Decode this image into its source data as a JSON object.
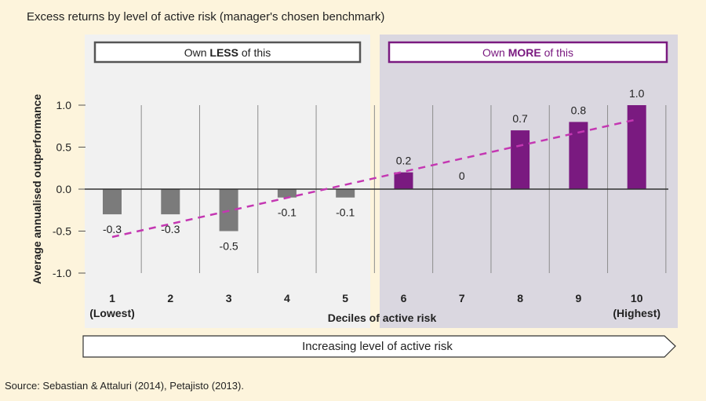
{
  "title": "Excess returns by level of active risk (manager's chosen benchmark)",
  "source": "Source: Sebastian & Attaluri (2014), Petajisto (2013).",
  "boxes": {
    "less": {
      "pre": "Own ",
      "bold": "LESS",
      "post": " of this"
    },
    "more": {
      "pre": "Own ",
      "bold": "MORE",
      "post": " of this"
    }
  },
  "arrow_label": "Increasing level of active risk",
  "colors": {
    "negative_bar": "#7b7b7b",
    "positive_bar": "#7a1a80",
    "trend": "#c437b2",
    "less_panel": "#f1f1f1",
    "more_panel": "#dad7e0",
    "more_box_border": "#7a1a80",
    "background": "#fdf4dc"
  },
  "chart_data": {
    "type": "bar",
    "categories": [
      "1",
      "2",
      "3",
      "4",
      "5",
      "6",
      "7",
      "8",
      "9",
      "10"
    ],
    "category_sublabels": {
      "1": "(Lowest)",
      "10": "(Highest)"
    },
    "values": [
      -0.3,
      -0.3,
      -0.5,
      -0.1,
      -0.1,
      0.2,
      0,
      0.7,
      0.8,
      1.0
    ],
    "data_labels": [
      "-0.3",
      "-0.3",
      "-0.5",
      "-0.1",
      "-0.1",
      "0.2",
      "0",
      "0.7",
      "0.8",
      "1.0"
    ],
    "xlabel": "Deciles of active risk",
    "ylabel": "Average annualised outperformance",
    "ylim": [
      -1.0,
      1.0
    ],
    "yticks": [
      1.0,
      0.5,
      0.0,
      -0.5,
      -1.0
    ],
    "ytick_labels": [
      "1.0",
      "0.5",
      "0.0",
      "-0.5",
      "-1.0"
    ],
    "trend_line": {
      "style": "dashed",
      "start": [
        1,
        -0.57
      ],
      "end": [
        10,
        0.83
      ]
    },
    "grid": "vertical"
  }
}
